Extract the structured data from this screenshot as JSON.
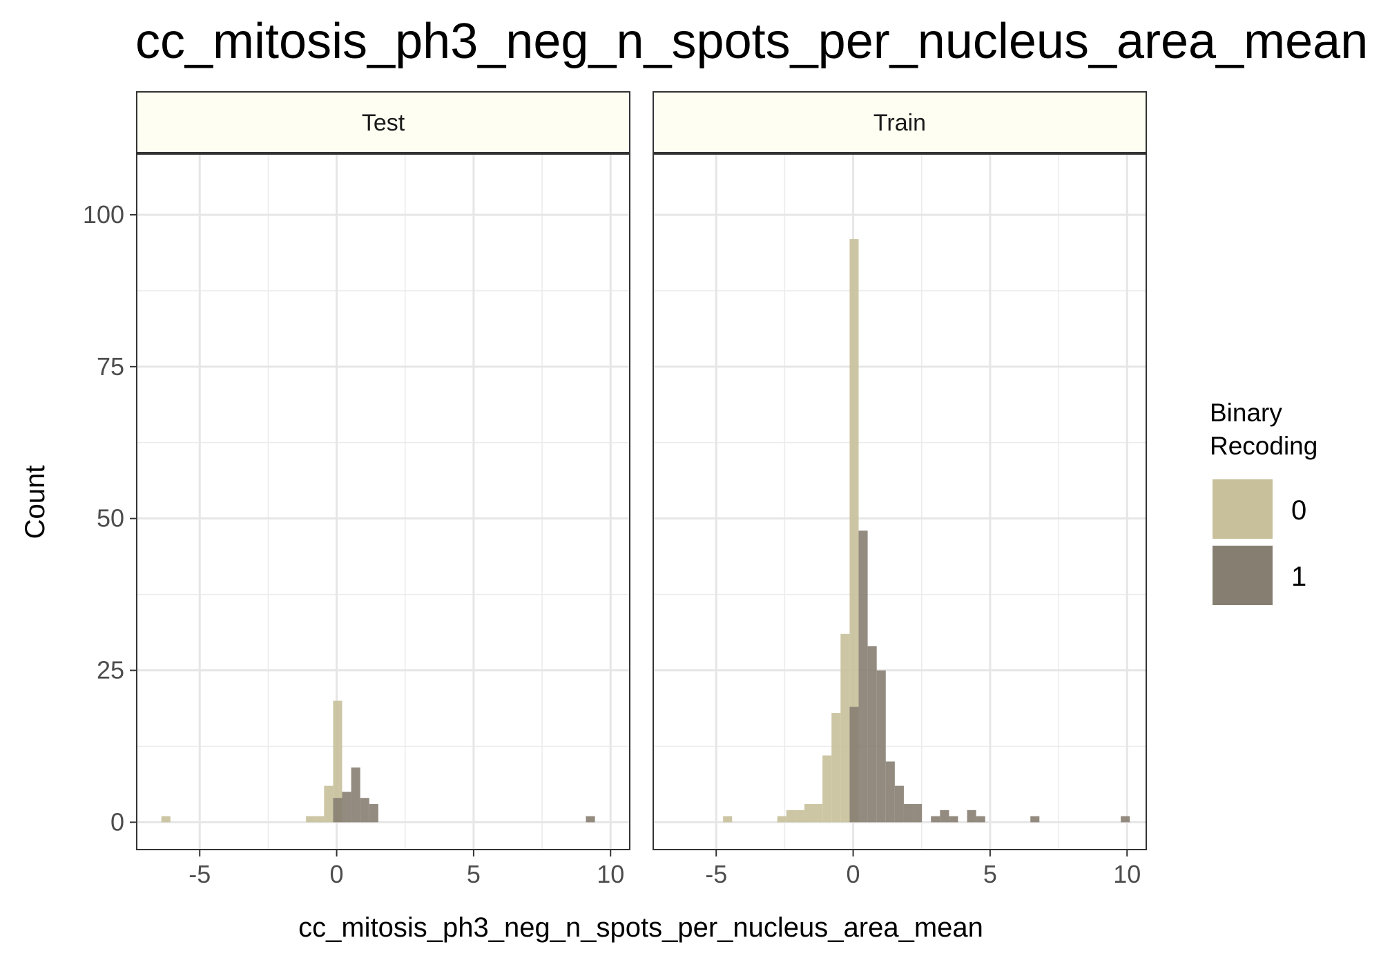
{
  "chart_data": {
    "type": "bar",
    "title": "cc_mitosis_ph3_neg_n_spots_per_nucleus_area_mean",
    "xlabel": "cc_mitosis_ph3_neg_n_spots_per_nucleus_area_mean",
    "ylabel": "Count",
    "xlim": [
      -7.3,
      10.7
    ],
    "ylim": [
      -4.5,
      110
    ],
    "x_ticks": [
      -5,
      0,
      5,
      10
    ],
    "x_tick_labels": [
      "-5",
      "0",
      "5",
      "10"
    ],
    "y_ticks": [
      0,
      25,
      50,
      75,
      100
    ],
    "y_tick_labels": [
      "0",
      "25",
      "50",
      "75",
      "100"
    ],
    "grid": true,
    "bin_width": 0.33,
    "legend": {
      "title_lines": [
        "Binary",
        "Recoding"
      ],
      "position": "right",
      "entries": [
        {
          "label": "0",
          "color": "#c8c09a"
        },
        {
          "label": "1",
          "color": "#877e72"
        }
      ]
    },
    "colors": {
      "0": "#c8c09a",
      "1": "#877e72"
    },
    "strip_color": "#fefff2",
    "panels": [
      {
        "name": "Test",
        "series": [
          {
            "group": "0",
            "bins": [
              {
                "x0": -6.4,
                "x1": -6.07,
                "count": 1
              },
              {
                "x0": -1.12,
                "x1": -0.79,
                "count": 1
              },
              {
                "x0": -0.79,
                "x1": -0.46,
                "count": 1
              },
              {
                "x0": -0.46,
                "x1": -0.13,
                "count": 6
              },
              {
                "x0": -0.13,
                "x1": 0.2,
                "count": 20
              }
            ]
          },
          {
            "group": "1",
            "bins": [
              {
                "x0": -0.13,
                "x1": 0.2,
                "count": 4
              },
              {
                "x0": 0.2,
                "x1": 0.53,
                "count": 5
              },
              {
                "x0": 0.53,
                "x1": 0.86,
                "count": 9
              },
              {
                "x0": 0.86,
                "x1": 1.19,
                "count": 4
              },
              {
                "x0": 1.19,
                "x1": 1.52,
                "count": 3
              },
              {
                "x0": 9.1,
                "x1": 9.43,
                "count": 1
              }
            ]
          }
        ]
      },
      {
        "name": "Train",
        "series": [
          {
            "group": "0",
            "bins": [
              {
                "x0": -4.75,
                "x1": -4.42,
                "count": 1
              },
              {
                "x0": -2.77,
                "x1": -2.44,
                "count": 1
              },
              {
                "x0": -2.44,
                "x1": -2.11,
                "count": 2
              },
              {
                "x0": -2.11,
                "x1": -1.78,
                "count": 2
              },
              {
                "x0": -1.78,
                "x1": -1.45,
                "count": 3
              },
              {
                "x0": -1.45,
                "x1": -1.12,
                "count": 3
              },
              {
                "x0": -1.12,
                "x1": -0.79,
                "count": 11
              },
              {
                "x0": -0.79,
                "x1": -0.46,
                "count": 18
              },
              {
                "x0": -0.46,
                "x1": -0.13,
                "count": 31
              },
              {
                "x0": -0.13,
                "x1": 0.2,
                "count": 96
              }
            ]
          },
          {
            "group": "1",
            "bins": [
              {
                "x0": -0.13,
                "x1": 0.2,
                "count": 19
              },
              {
                "x0": 0.2,
                "x1": 0.53,
                "count": 48
              },
              {
                "x0": 0.53,
                "x1": 0.86,
                "count": 29
              },
              {
                "x0": 0.86,
                "x1": 1.19,
                "count": 25
              },
              {
                "x0": 1.19,
                "x1": 1.52,
                "count": 10
              },
              {
                "x0": 1.52,
                "x1": 1.85,
                "count": 6
              },
              {
                "x0": 1.85,
                "x1": 2.18,
                "count": 3
              },
              {
                "x0": 2.18,
                "x1": 2.51,
                "count": 3
              },
              {
                "x0": 2.84,
                "x1": 3.17,
                "count": 1
              },
              {
                "x0": 3.17,
                "x1": 3.5,
                "count": 2
              },
              {
                "x0": 3.5,
                "x1": 3.83,
                "count": 1
              },
              {
                "x0": 4.16,
                "x1": 4.49,
                "count": 2
              },
              {
                "x0": 4.49,
                "x1": 4.82,
                "count": 1
              },
              {
                "x0": 6.47,
                "x1": 6.8,
                "count": 1
              },
              {
                "x0": 9.77,
                "x1": 10.1,
                "count": 1
              }
            ]
          }
        ]
      }
    ]
  }
}
